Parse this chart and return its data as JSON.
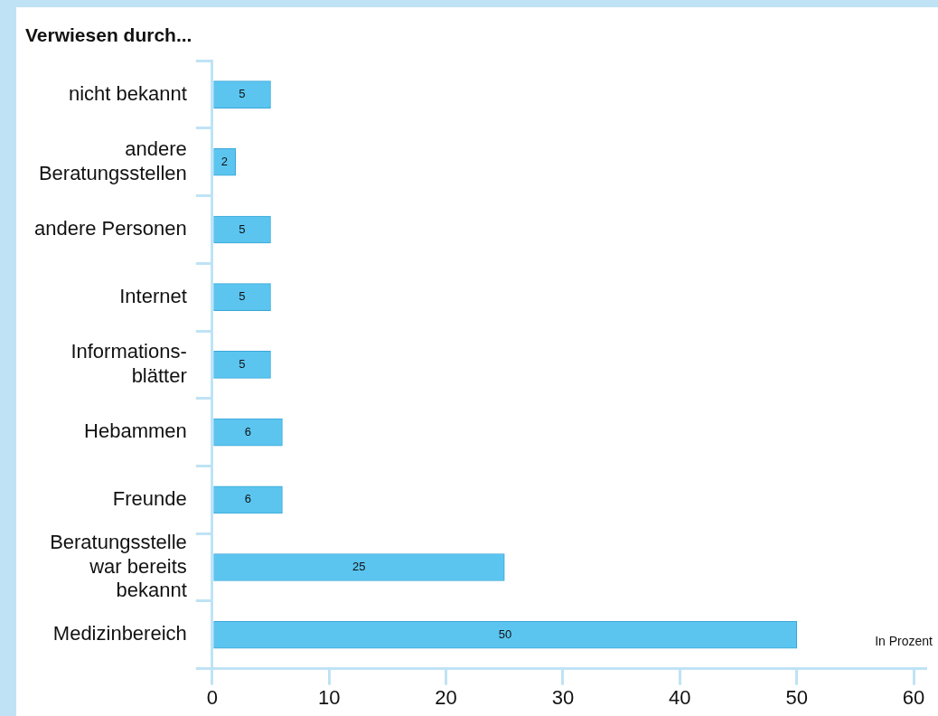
{
  "chart_data": {
    "type": "bar",
    "orientation": "horizontal",
    "title": "Verwiesen durch...",
    "categories": [
      "nicht bekannt",
      "andere\nBeratungsstellen",
      "andere Personen",
      "Internet",
      "Informations-\nblätter",
      "Hebammen",
      "Freunde",
      "Beratungsstelle\nwar bereits\nbekannt",
      "Medizinbereich"
    ],
    "values": [
      5,
      2,
      5,
      5,
      5,
      6,
      6,
      25,
      50
    ],
    "color": "#5bc5f0",
    "xlim": [
      0,
      61
    ],
    "xticks": [
      0,
      10,
      20,
      30,
      40,
      50,
      60
    ],
    "data_labels": true,
    "grid": false,
    "legend": false,
    "annotations": [
      "In Prozent"
    ]
  }
}
